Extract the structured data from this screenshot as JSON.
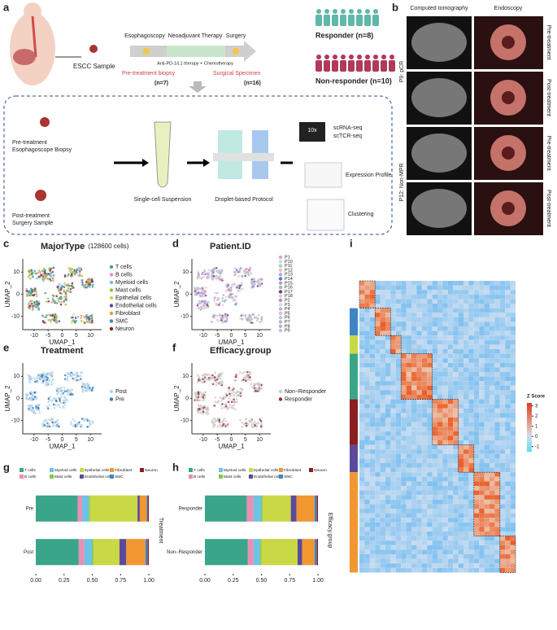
{
  "panel_labels": [
    "a",
    "b",
    "c",
    "d",
    "e",
    "f",
    "g",
    "h",
    "i"
  ],
  "panel_a": {
    "sample": "ESCC Sample",
    "steps": [
      "Esophagoscopy",
      "Neoadjuvant Therapy",
      "Surgery"
    ],
    "therapy": "Anti-PD-1/L1 therapy + Chemotherapy",
    "biopsy": "Pre-treatment biopsy",
    "biopsy_n": "(n=7)",
    "specimen": "Surgical Specimen",
    "specimen_n": "(n=16)",
    "responder": "Responder (n=8)",
    "non_responder": "Non-responder (n=10)",
    "pre_sample": [
      "Pre-treatment",
      "Esophagoscope Biopsy"
    ],
    "post_sample": [
      "Post-treatment",
      "Surgery Sample"
    ],
    "suspension": "Single-cell Suspension",
    "protocol": "Droplet-based Protocol",
    "device": "10x",
    "seq": [
      "scRNA-seq",
      "scTCR-seq"
    ],
    "expression": "Expression Profile",
    "clustering": "Clustering"
  },
  "panel_b": {
    "headers": [
      "Computed tomography",
      "Endoscopy"
    ],
    "patients": [
      "P9: pCR",
      "P12: Non-MPR"
    ],
    "timepoints": [
      "Pre-treatment",
      "Post-treatment",
      "Pre-treatment",
      "Post-treatment"
    ]
  },
  "chart_data": [
    {
      "type": "scatter",
      "title": "MajorType",
      "subtitle": "(128600 cells)",
      "xlabel": "UMAP_1",
      "ylabel": "UMAP_2",
      "xlim": [
        -14,
        14
      ],
      "ylim": [
        -16,
        16
      ],
      "xticks": [
        -10,
        -5,
        0,
        5,
        10
      ],
      "yticks": [
        -10,
        0,
        10
      ],
      "legend": [
        {
          "name": "T cells",
          "color": "#3aa588"
        },
        {
          "name": "B cells",
          "color": "#e88fb4"
        },
        {
          "name": "Myeloid cells",
          "color": "#6cc3e3"
        },
        {
          "name": "Mast cells",
          "color": "#8dc63f"
        },
        {
          "name": "Epithelial cells",
          "color": "#c9d845"
        },
        {
          "name": "Endothelial cells",
          "color": "#5b4a9b"
        },
        {
          "name": "Fibroblast",
          "color": "#f29631"
        },
        {
          "name": "SMC",
          "color": "#3d86c6"
        },
        {
          "name": "Neuron",
          "color": "#8b1e1e"
        }
      ]
    },
    {
      "type": "scatter",
      "title": "Patient.ID",
      "xlabel": "UMAP_1",
      "ylabel": "UMAP_2",
      "xlim": [
        -14,
        14
      ],
      "ylim": [
        -16,
        16
      ],
      "xticks": [
        -10,
        -5,
        0,
        5,
        10
      ],
      "yticks": [
        -10,
        0,
        10
      ],
      "legend": [
        {
          "name": "P1",
          "color": "#e8a0c8"
        },
        {
          "name": "P10",
          "color": "#c7d8e8"
        },
        {
          "name": "P11",
          "color": "#a8d8a0"
        },
        {
          "name": "P12",
          "color": "#f0b8d0"
        },
        {
          "name": "P13",
          "color": "#b0a8d8"
        },
        {
          "name": "P14",
          "color": "#5a7ab8"
        },
        {
          "name": "P15",
          "color": "#c898c8"
        },
        {
          "name": "P16",
          "color": "#8ac8b0"
        },
        {
          "name": "P17",
          "color": "#8e3a6a"
        },
        {
          "name": "P18",
          "color": "#d8c8e8"
        },
        {
          "name": "P2",
          "color": "#a890c8"
        },
        {
          "name": "P3",
          "color": "#d8d8d8"
        },
        {
          "name": "P4",
          "color": "#c8b0d8"
        },
        {
          "name": "P5",
          "color": "#e0b8d8"
        },
        {
          "name": "P6",
          "color": "#b8c8e0"
        },
        {
          "name": "P7",
          "color": "#d8a8c0"
        },
        {
          "name": "P8",
          "color": "#a8b8d8"
        },
        {
          "name": "P9",
          "color": "#c0c0e0"
        }
      ]
    },
    {
      "type": "scatter",
      "title": "Treatment",
      "xlabel": "UMAP_1",
      "ylabel": "UMAP_2",
      "xlim": [
        -14,
        14
      ],
      "ylim": [
        -16,
        16
      ],
      "xticks": [
        -10,
        -5,
        0,
        5,
        10
      ],
      "yticks": [
        -10,
        0,
        10
      ],
      "legend": [
        {
          "name": "Post",
          "color": "#b8d4e8"
        },
        {
          "name": "Pre",
          "color": "#3a7ab8"
        }
      ]
    },
    {
      "type": "scatter",
      "title": "Efficacy.group",
      "xlabel": "UMAP_1",
      "ylabel": "UMAP_2",
      "xlim": [
        -14,
        14
      ],
      "ylim": [
        -16,
        16
      ],
      "xticks": [
        -10,
        -5,
        0,
        5,
        10
      ],
      "yticks": [
        -10,
        0,
        10
      ],
      "legend": [
        {
          "name": "Non−Responder",
          "color": "#cccccc"
        },
        {
          "name": "Responder",
          "color": "#9e2a2b"
        }
      ]
    },
    {
      "type": "stacked_barh",
      "axis_label": "Treatment",
      "categories": [
        "Pre",
        "Post"
      ],
      "xlim": [
        0,
        1.05
      ],
      "xticks": [
        {
          "value": 0,
          "label": "0.00"
        },
        {
          "value": 0.25,
          "label": "0.25"
        },
        {
          "value": 0.5,
          "label": "0.50"
        },
        {
          "value": 0.75,
          "label": "0.75"
        },
        {
          "value": 1,
          "label": "1.00"
        }
      ],
      "series": [
        {
          "name": "T cells",
          "color": "#3aa588",
          "values": [
            0.37,
            0.38
          ]
        },
        {
          "name": "B cells",
          "color": "#e88fb4",
          "values": [
            0.04,
            0.05
          ]
        },
        {
          "name": "Myeloid cells",
          "color": "#6cc3e3",
          "values": [
            0.06,
            0.07
          ]
        },
        {
          "name": "Mast cells",
          "color": "#8dc63f",
          "values": [
            0.01,
            0.01
          ]
        },
        {
          "name": "Epithelial cells",
          "color": "#c9d845",
          "values": [
            0.42,
            0.23
          ]
        },
        {
          "name": "Endothelial cells",
          "color": "#5b4a9b",
          "values": [
            0.02,
            0.06
          ]
        },
        {
          "name": "Fibroblast",
          "color": "#f29631",
          "values": [
            0.06,
            0.17
          ]
        },
        {
          "name": "SMC",
          "color": "#3d86c6",
          "values": [
            0.01,
            0.02
          ]
        },
        {
          "name": "Neuron",
          "color": "#8b1e1e",
          "values": [
            0.01,
            0.01
          ]
        }
      ]
    },
    {
      "type": "stacked_barh",
      "axis_label": "Efficacy.group",
      "categories": [
        "Responder",
        "Non−Responder"
      ],
      "xlim": [
        0,
        1.05
      ],
      "xticks": [
        {
          "value": 0,
          "label": "0.00"
        },
        {
          "value": 0.25,
          "label": "0.25"
        },
        {
          "value": 0.5,
          "label": "0.50"
        },
        {
          "value": 0.75,
          "label": "0.75"
        },
        {
          "value": 1,
          "label": "1.00"
        }
      ],
      "series": [
        {
          "name": "T cells",
          "color": "#3aa588",
          "values": [
            0.37,
            0.38
          ]
        },
        {
          "name": "B cells",
          "color": "#e88fb4",
          "values": [
            0.06,
            0.05
          ]
        },
        {
          "name": "Myeloid cells",
          "color": "#6cc3e3",
          "values": [
            0.07,
            0.06
          ]
        },
        {
          "name": "Mast cells",
          "color": "#8dc63f",
          "values": [
            0.01,
            0.01
          ]
        },
        {
          "name": "Epithelial cells",
          "color": "#c9d845",
          "values": [
            0.25,
            0.32
          ]
        },
        {
          "name": "Endothelial cells",
          "color": "#5b4a9b",
          "values": [
            0.05,
            0.04
          ]
        },
        {
          "name": "Fibroblast",
          "color": "#f29631",
          "values": [
            0.16,
            0.11
          ]
        },
        {
          "name": "SMC",
          "color": "#3d86c6",
          "values": [
            0.02,
            0.02
          ]
        },
        {
          "name": "Neuron",
          "color": "#8b1e1e",
          "values": [
            0.01,
            0.01
          ]
        }
      ]
    },
    {
      "type": "heatmap",
      "legend_title": "Z Score",
      "zlim": [
        -1.5,
        3.3
      ],
      "zticks": [
        3,
        2,
        1,
        0,
        -1
      ]
    }
  ]
}
